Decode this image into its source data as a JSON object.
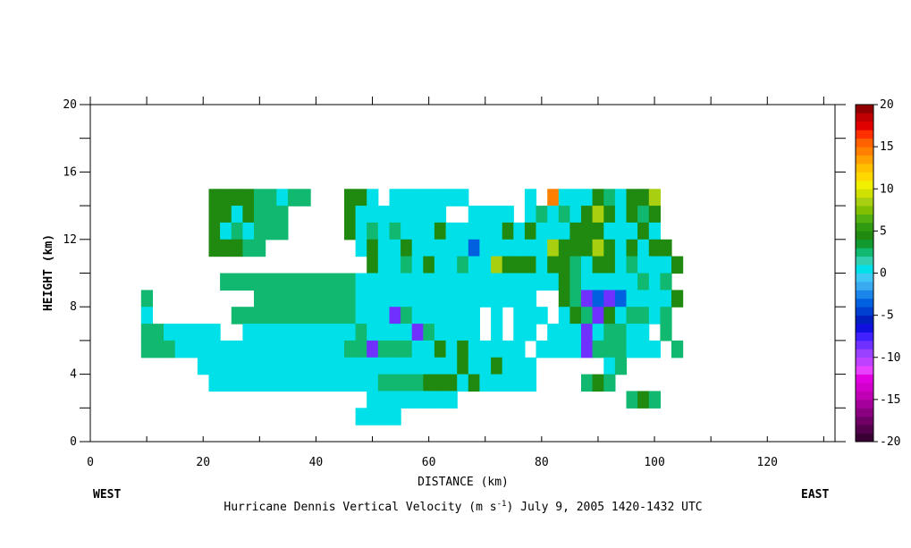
{
  "chart_data": {
    "type": "heatmap",
    "title": "Hurricane Dennis Vertical Velocity (m s",
    "title_units_exp": "-1",
    "title_tail": ") July 9, 2005 1420-1432 UTC",
    "xlabel": "DISTANCE (km)",
    "ylabel": "HEIGHT (km)",
    "left_label": "WEST",
    "right_label": "EAST",
    "xlim": [
      0,
      132
    ],
    "ylim": [
      0,
      20
    ],
    "x_ticks": [
      0,
      20,
      40,
      60,
      80,
      100,
      120
    ],
    "y_ticks": [
      0,
      4,
      8,
      12,
      16,
      20
    ],
    "colorbar": {
      "ticks": [
        20,
        15,
        10,
        5,
        0,
        -5,
        -10,
        -15,
        -20
      ],
      "levels": [
        -20,
        -19,
        -18,
        -17,
        -16,
        -15,
        -14,
        -13,
        -12,
        -11,
        -10,
        -9,
        -8,
        -7,
        -6,
        -5,
        -4,
        -3,
        -2,
        -1,
        0,
        1,
        2,
        3,
        4,
        5,
        6,
        7,
        8,
        9,
        10,
        11,
        12,
        13,
        14,
        15,
        16,
        17,
        18,
        19,
        20
      ],
      "colors": [
        "#3a0033",
        "#55004d",
        "#700066",
        "#8b0080",
        "#a6009a",
        "#c000b3",
        "#d200cc",
        "#e000e0",
        "#e840ff",
        "#c040ff",
        "#9a40ff",
        "#7030ff",
        "#4020ff",
        "#1010e0",
        "#0020c0",
        "#0040d0",
        "#0060e0",
        "#1a86ea",
        "#3aaaf0",
        "#40c8f4",
        "#00e0e8",
        "#30d0b0",
        "#10b870",
        "#109a30",
        "#208a10",
        "#309a10",
        "#52b010",
        "#80c000",
        "#a8d010",
        "#d0e000",
        "#f0f000",
        "#ffd800",
        "#ffc000",
        "#ffa000",
        "#ff8000",
        "#ff6000",
        "#ff3000",
        "#e00000",
        "#c00000",
        "#900000",
        "#600000"
      ]
    },
    "field": {
      "x_start": 9,
      "x_step": 2,
      "y_start": 1,
      "y_step": 1,
      "rows": [
        "......333311011...330.0000000.....0.9000310336",
        "......3303111.....300000000..0000.010103630313",
        "......3010111.....3010100030000030300033300030",
        "......33311........0300300000500000063336303033",
        "....................3001030010063330331033010003",
        ".......1111111111110000000000000000003100000101",
        "1.........1111111110000000000000000..31-5-500003",
        "0.......11111111111000-1000000.0.000.031-301101",
        "1100000..000000000010000-10000.0.00.000-01100.1",
        "11100000000000000011-1110030300000.0000-111000.1",
        ".....000000000000000000000003003000......01.....",
        "......00000000000000011113330300000....131......",
        "....................00000000...............131...",
        "...................0000........................."
      ]
    }
  }
}
